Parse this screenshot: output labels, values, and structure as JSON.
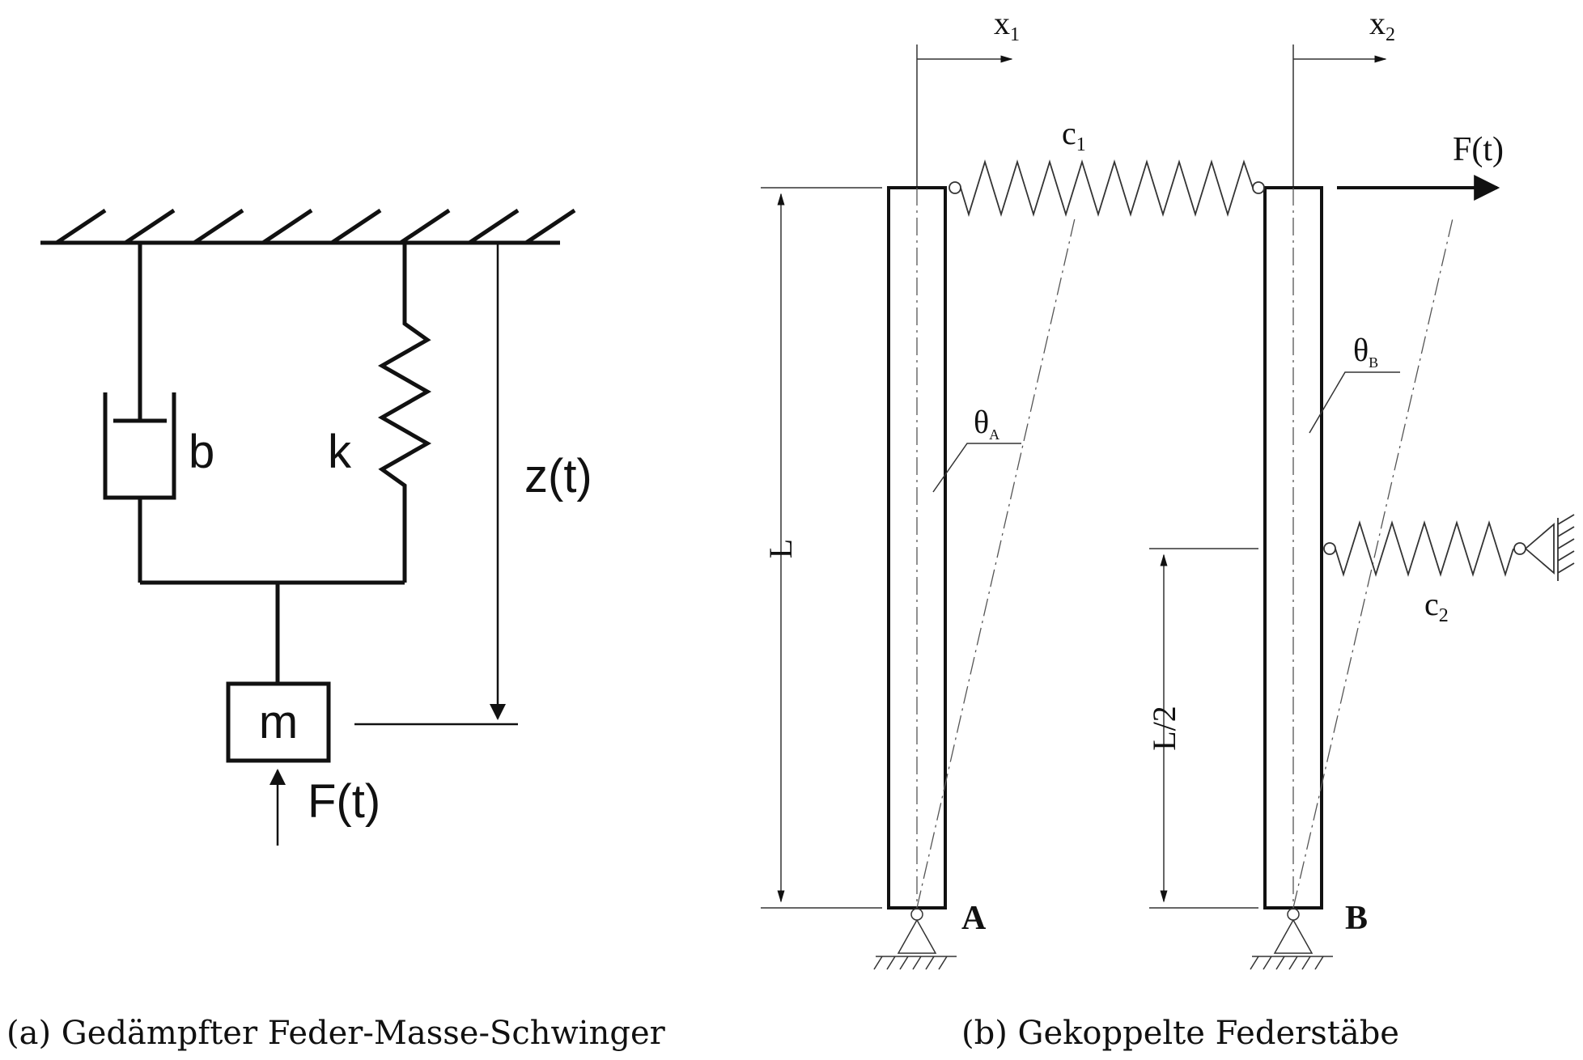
{
  "panel_a": {
    "labels": {
      "damper": "b",
      "spring": "k",
      "displacement": "z(t)",
      "mass": "m",
      "force": "F(t)"
    },
    "caption": "(a) Gedämpfter Feder-Masse-Schwinger"
  },
  "panel_b": {
    "labels": {
      "x1_base": "x",
      "x1_sub": "1",
      "x2_base": "x",
      "x2_sub": "2",
      "c1_base": "c",
      "c1_sub": "1",
      "c2_base": "c",
      "c2_sub": "2",
      "force": "F(t)",
      "length": "L",
      "half_length": "L/2",
      "theta_a_base": "θ",
      "theta_a_sub": "A",
      "theta_b_base": "θ",
      "theta_b_sub": "B",
      "point_a": "A",
      "point_b": "B"
    },
    "caption": "(b) Gekoppelte Federstäbe"
  },
  "colors": {
    "line": "#111111",
    "thin_line": "#333333"
  }
}
